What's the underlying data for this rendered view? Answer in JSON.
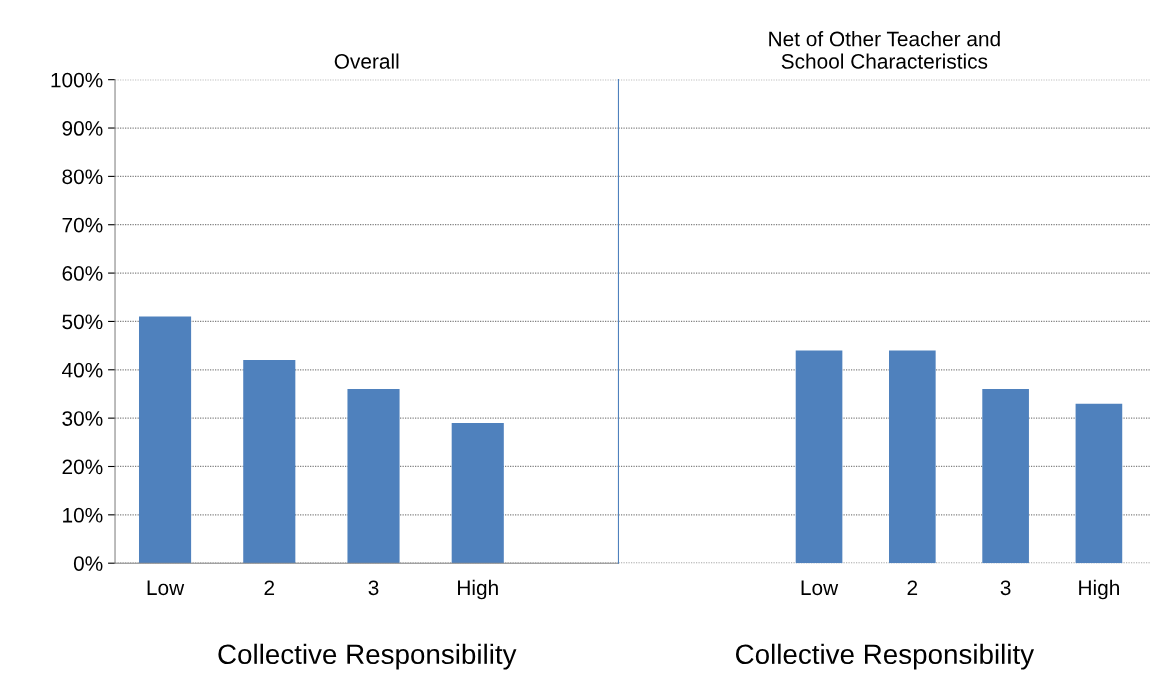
{
  "chart_data": [
    {
      "type": "bar",
      "title": "Overall",
      "xlabel": "Collective Responsibility",
      "categories": [
        "Low",
        "2",
        "3",
        "High"
      ],
      "values": [
        51,
        42,
        36,
        29
      ],
      "color": "#4f81bd",
      "ylim": [
        0,
        100
      ],
      "yticks": [
        {
          "value": 0,
          "label": "0%"
        },
        {
          "value": 10,
          "label": "10%"
        },
        {
          "value": 20,
          "label": "20%"
        },
        {
          "value": 30,
          "label": "30%"
        },
        {
          "value": 40,
          "label": "40%"
        },
        {
          "value": 50,
          "label": "50%"
        },
        {
          "value": 60,
          "label": "60%"
        },
        {
          "value": 70,
          "label": "70%"
        },
        {
          "value": 80,
          "label": "80%"
        },
        {
          "value": 90,
          "label": "90%"
        },
        {
          "value": 100,
          "label": "100%"
        }
      ],
      "grid": "y"
    },
    {
      "type": "bar",
      "title": "Net of Other Teacher and\nSchool Characteristics",
      "xlabel": "Collective Responsibility",
      "categories": [
        "Low",
        "2",
        "3",
        "High"
      ],
      "values": [
        44,
        44,
        36,
        33
      ],
      "color": "#4f81bd",
      "ylim": [
        0,
        100
      ],
      "yticks": [
        0,
        10,
        20,
        30,
        40,
        50,
        60,
        70,
        80,
        90,
        100
      ],
      "grid": "y",
      "tick_labels": "x"
    }
  ]
}
